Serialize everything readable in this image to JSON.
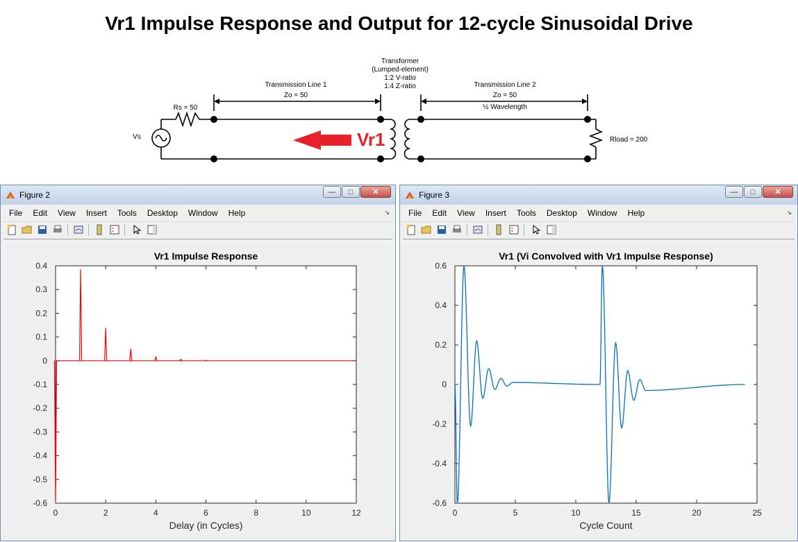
{
  "page_title": "Vr1 Impulse Response and Output for 12-cycle Sinusoidal Drive",
  "schematic": {
    "vs_label": "Vs",
    "rs_label": "Rs = 50",
    "tl1_title": "Transmission Line 1",
    "tl1_zo": "Zo = 50",
    "transformer_lines": [
      "Transformer",
      "(Lumped-element)",
      "1:2 V-ratio",
      "1:4 Z-ratio"
    ],
    "tl2_title": "Transmission Line 2",
    "tl2_zo": "Zo = 50",
    "tl2_len": "½ Wavelength",
    "probe_label": "Vr1",
    "rload_label": "Rload = 200",
    "accent_color": "#e8202a"
  },
  "windows": [
    {
      "title": "Figure 2",
      "menu": [
        "File",
        "Edit",
        "View",
        "Insert",
        "Tools",
        "Desktop",
        "Window",
        "Help"
      ],
      "icons": [
        "new-figure-icon",
        "open-file-icon",
        "save-icon",
        "print-icon",
        "link-plot-icon",
        "colorbar-icon",
        "legend-icon",
        "pointer-icon",
        "property-editor-icon"
      ]
    },
    {
      "title": "Figure 3",
      "menu": [
        "File",
        "Edit",
        "View",
        "Insert",
        "Tools",
        "Desktop",
        "Window",
        "Help"
      ],
      "icons": [
        "new-figure-icon",
        "open-file-icon",
        "save-icon",
        "print-icon",
        "link-plot-icon",
        "colorbar-icon",
        "legend-icon",
        "pointer-icon",
        "property-editor-icon"
      ]
    }
  ],
  "chart_data": [
    {
      "type": "line",
      "title": "Vr1 Impulse Response",
      "xlabel": "Delay (in Cycles)",
      "ylabel": "",
      "xlim": [
        0,
        12
      ],
      "ylim": [
        -0.6,
        0.4
      ],
      "xticks": [
        0,
        2,
        4,
        6,
        8,
        10,
        12
      ],
      "yticks": [
        -0.6,
        -0.5,
        -0.4,
        -0.3,
        -0.2,
        -0.1,
        0,
        0.1,
        0.2,
        0.3,
        0.4
      ],
      "ytick_labels": [
        "-0.6",
        "-0.5",
        "-0.4",
        "-0.3",
        "-0.2",
        "-0.1",
        "0",
        "0.1",
        "0.2",
        "0.3",
        "0.4"
      ],
      "grid": false,
      "color": "#ff0000",
      "impulses": [
        {
          "x": 0,
          "y": -0.6
        },
        {
          "x": 1,
          "y": 0.385
        },
        {
          "x": 2,
          "y": 0.138
        },
        {
          "x": 3,
          "y": 0.05
        },
        {
          "x": 4,
          "y": 0.018
        },
        {
          "x": 5,
          "y": 0.006
        },
        {
          "x": 6,
          "y": 0.002
        }
      ]
    },
    {
      "type": "line",
      "title": "Vr1 (Vi Convolved with Vr1 Impulse Response)",
      "xlabel": "Cycle Count",
      "ylabel": "",
      "xlim": [
        0,
        25
      ],
      "ylim": [
        -0.6,
        0.6
      ],
      "xticks": [
        0,
        5,
        10,
        15,
        20,
        25
      ],
      "yticks": [
        -0.6,
        -0.4,
        -0.2,
        0,
        0.2,
        0.4,
        0.6
      ],
      "ytick_labels": [
        "-0.6",
        "-0.4",
        "-0.2",
        "0",
        "0.2",
        "0.4",
        "0.6"
      ],
      "grid": false,
      "color": "#0072bd",
      "x_end": 24,
      "envelope_points": [
        {
          "x": 0,
          "y": 0
        },
        {
          "x": 0.2,
          "y": -0.6
        },
        {
          "x": 0.75,
          "y": 0.6
        },
        {
          "x": 1.3,
          "y": -0.21
        },
        {
          "x": 1.8,
          "y": 0.22
        },
        {
          "x": 2.3,
          "y": -0.07
        },
        {
          "x": 2.8,
          "y": 0.08
        },
        {
          "x": 3.3,
          "y": -0.025
        },
        {
          "x": 3.8,
          "y": 0.03
        },
        {
          "x": 4.3,
          "y": -0.008
        },
        {
          "x": 4.8,
          "y": 0.01
        },
        {
          "x": 12,
          "y": 0
        },
        {
          "x": 12.2,
          "y": 0.6
        },
        {
          "x": 12.75,
          "y": -0.6
        },
        {
          "x": 13.3,
          "y": 0.21
        },
        {
          "x": 13.8,
          "y": -0.22
        },
        {
          "x": 14.3,
          "y": 0.07
        },
        {
          "x": 14.8,
          "y": -0.08
        },
        {
          "x": 15.3,
          "y": 0.025
        },
        {
          "x": 15.8,
          "y": -0.03
        },
        {
          "x": 24,
          "y": 0
        }
      ]
    }
  ]
}
